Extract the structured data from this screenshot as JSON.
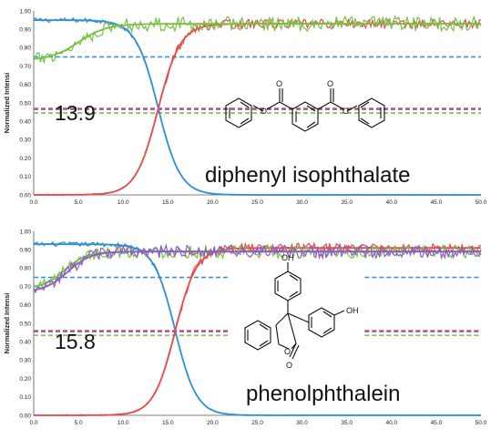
{
  "chart_data": [
    {
      "type": "line",
      "title": "",
      "ylabel": "Normalized Intensi",
      "xlabel": "",
      "xlim": [
        0,
        50
      ],
      "ylim": [
        0,
        1.0
      ],
      "x_ticks": [
        "0.0",
        "5.0",
        "10.0",
        "15.0",
        "20.0",
        "25.0",
        "30.0",
        "35.0",
        "40.0",
        "45.0",
        "50.0"
      ],
      "y_ticks": [
        "0.00",
        "0.10",
        "0.20",
        "0.30",
        "0.40",
        "0.50",
        "0.60",
        "0.70",
        "0.80",
        "0.90",
        "1.00"
      ],
      "grid": false,
      "annotation_value": "13.9",
      "compound_label": "diphenyl isophthalate",
      "colors": {
        "blue": "#2f8fd8",
        "red": "#e84a4a",
        "green": "#78c043"
      },
      "series": [
        {
          "color": "blue",
          "kind": "decay",
          "start": 0.95,
          "end": 0.0,
          "midpoint": 13.9,
          "width": 1.25,
          "noise": 0.012
        },
        {
          "color": "red",
          "kind": "rise",
          "start": 0.0,
          "end": 0.93,
          "midpoint": 13.9,
          "width": 1.25,
          "noise": 0.025
        },
        {
          "color": "green",
          "kind": "rise",
          "start": 0.73,
          "end": 0.93,
          "midpoint": 5.0,
          "width": 1.6,
          "noise": 0.04
        }
      ],
      "reference_lines": [
        {
          "y": 0.75,
          "color": "blue",
          "x_start": 0.0,
          "x_end": 50.0
        },
        {
          "y": 0.47,
          "color": "red",
          "x_start": 0.0,
          "x_end": 50.0
        },
        {
          "y": 0.465,
          "color": "purple",
          "x_start": 0.0,
          "x_end": 50.0
        },
        {
          "y": 0.445,
          "color": "green",
          "x_start": 0.0,
          "x_end": 50.0
        }
      ]
    },
    {
      "type": "line",
      "title": "",
      "ylabel": "Normalized Intensi",
      "xlabel": "",
      "xlim": [
        0,
        50
      ],
      "ylim": [
        0,
        1.0
      ],
      "x_ticks": [
        "0.0",
        "5.0",
        "10.0",
        "15.0",
        "20.0",
        "25.0",
        "30.0",
        "35.0",
        "40.0",
        "45.0",
        "50.0"
      ],
      "y_ticks": [
        "0.00",
        "0.10",
        "0.20",
        "0.30",
        "0.40",
        "0.50",
        "0.60",
        "0.70",
        "0.80",
        "0.90",
        "1.00"
      ],
      "grid": false,
      "annotation_value": "15.8",
      "compound_label": "phenolphthalein",
      "colors": {
        "blue": "#2f8fd8",
        "red": "#e84a4a",
        "green": "#78c043",
        "purple": "#8e5cc2"
      },
      "series": [
        {
          "color": "blue",
          "kind": "decay",
          "start": 0.93,
          "end": 0.0,
          "midpoint": 15.8,
          "width": 1.2,
          "noise": 0.012
        },
        {
          "color": "red",
          "kind": "rise",
          "start": 0.0,
          "end": 0.91,
          "midpoint": 15.8,
          "width": 1.2,
          "noise": 0.025
        },
        {
          "color": "green",
          "kind": "rise",
          "start": 0.69,
          "end": 0.89,
          "midpoint": 3.5,
          "width": 1.2,
          "noise": 0.035
        },
        {
          "color": "purple",
          "kind": "rise",
          "start": 0.67,
          "end": 0.89,
          "midpoint": 3.8,
          "width": 1.3,
          "noise": 0.035
        }
      ],
      "reference_lines": [
        {
          "y": 0.75,
          "color": "blue",
          "x_start": 0.0,
          "x_end": 22.0
        },
        {
          "y": 0.75,
          "color": "blue",
          "x_start": 37.0,
          "x_end": 50.0
        },
        {
          "y": 0.46,
          "color": "red",
          "x_start": 0.0,
          "x_end": 22.0
        },
        {
          "y": 0.46,
          "color": "red",
          "x_start": 37.0,
          "x_end": 50.0
        },
        {
          "y": 0.455,
          "color": "purple",
          "x_start": 0.0,
          "x_end": 22.0
        },
        {
          "y": 0.455,
          "color": "purple",
          "x_start": 37.0,
          "x_end": 50.0
        },
        {
          "y": 0.435,
          "color": "green",
          "x_start": 0.0,
          "x_end": 22.0
        },
        {
          "y": 0.435,
          "color": "green",
          "x_start": 37.0,
          "x_end": 50.0
        }
      ]
    }
  ],
  "molecule_labels": {
    "oh_top": "OH",
    "oh_right": "OH",
    "o_ring": "O",
    "o_keto": "O"
  }
}
